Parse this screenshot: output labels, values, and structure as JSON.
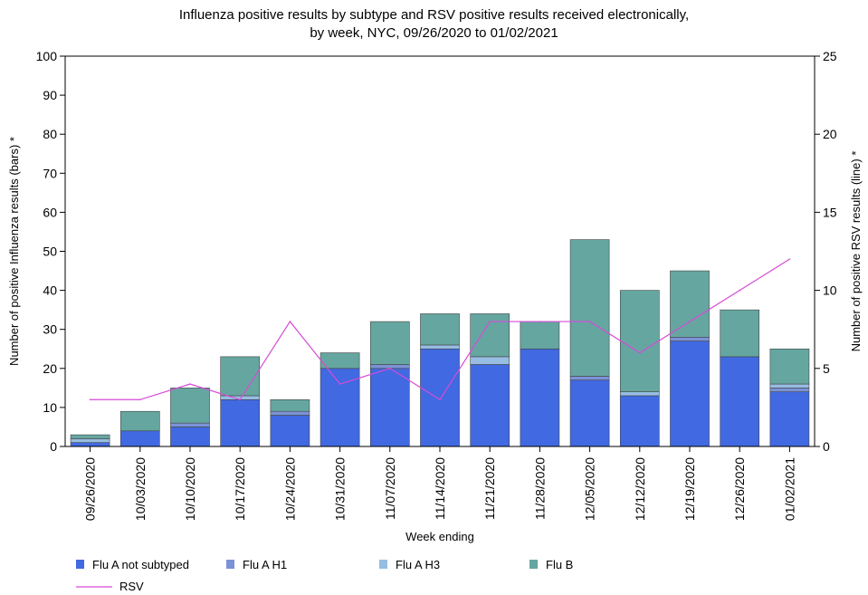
{
  "chart_data": {
    "type": "bar",
    "stacked": true,
    "title_lines": [
      "Influenza positive results by subtype and RSV positive results received electronically,",
      "by week, NYC, 09/26/2020 to 01/02/2021"
    ],
    "xlabel": "Week ending",
    "ylabel_left": "Number of positive Influenza results (bars) *",
    "ylabel_right": "Number of positive RSV results (line) *",
    "ylim_left": [
      0,
      100
    ],
    "ylim_right": [
      0,
      25
    ],
    "yticks_left": [
      0,
      10,
      20,
      30,
      40,
      50,
      60,
      70,
      80,
      90,
      100
    ],
    "yticks_right": [
      0,
      5,
      10,
      15,
      20,
      25
    ],
    "categories": [
      "09/26/2020",
      "10/03/2020",
      "10/10/2020",
      "10/17/2020",
      "10/24/2020",
      "10/31/2020",
      "11/07/2020",
      "11/14/2020",
      "11/21/2020",
      "11/28/2020",
      "12/05/2020",
      "12/12/2020",
      "12/19/2020",
      "12/26/2020",
      "01/02/2021"
    ],
    "series": [
      {
        "name": "Flu A not subtyped",
        "color": "#4169e1",
        "values": [
          1,
          4,
          5,
          12,
          8,
          20,
          20,
          25,
          21,
          25,
          17,
          13,
          27,
          23,
          14
        ]
      },
      {
        "name": "Flu A H1",
        "color": "#7b93d6",
        "values": [
          0,
          0,
          1,
          0,
          1,
          0,
          1,
          0,
          0,
          0,
          1,
          0,
          1,
          0,
          1
        ]
      },
      {
        "name": "Flu A H3",
        "color": "#97bde2",
        "values": [
          1,
          0,
          0,
          1,
          0,
          0,
          0,
          1,
          2,
          0,
          0,
          1,
          0,
          0,
          1
        ]
      },
      {
        "name": "Flu B",
        "color": "#66a6a0",
        "values": [
          1,
          5,
          9,
          10,
          3,
          4,
          11,
          8,
          11,
          7,
          35,
          26,
          17,
          12,
          9
        ]
      }
    ],
    "line_series": {
      "name": "RSV",
      "color": "#d64bd6",
      "axis": "right",
      "values": [
        3,
        3,
        4,
        3,
        8,
        4,
        5,
        3,
        8,
        8,
        8,
        6,
        8,
        10,
        12
      ]
    },
    "grid": false,
    "legend_position": "bottom"
  }
}
